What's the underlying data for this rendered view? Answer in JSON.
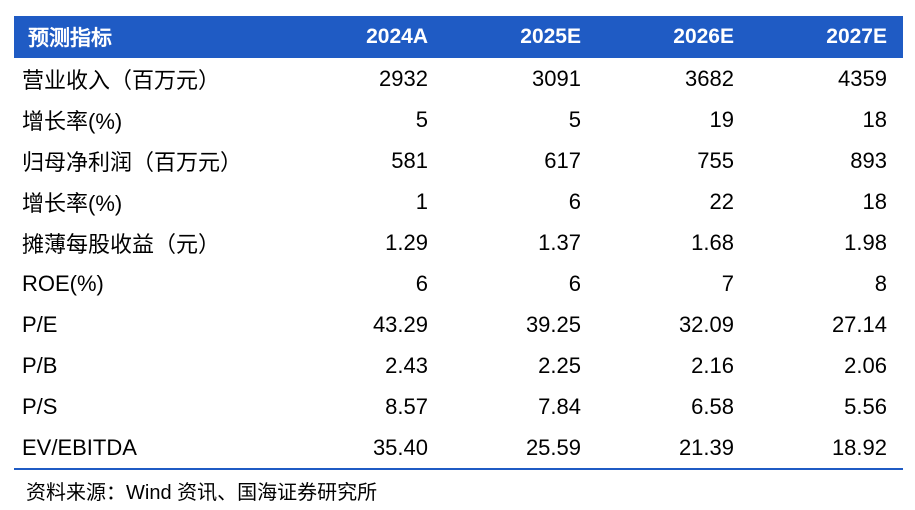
{
  "header": [
    "预测指标",
    "2024A",
    "2025E",
    "2026E",
    "2027E"
  ],
  "rows": [
    {
      "label": "营业收入（百万元）",
      "values": [
        "2932",
        "3091",
        "3682",
        "4359"
      ]
    },
    {
      "label": "增长率(%)",
      "values": [
        "5",
        "5",
        "19",
        "18"
      ]
    },
    {
      "label": "归母净利润（百万元）",
      "values": [
        "581",
        "617",
        "755",
        "893"
      ]
    },
    {
      "label": "增长率(%)",
      "values": [
        "1",
        "6",
        "22",
        "18"
      ]
    },
    {
      "label": "摊薄每股收益（元）",
      "values": [
        "1.29",
        "1.37",
        "1.68",
        "1.98"
      ]
    },
    {
      "label": "ROE(%)",
      "values": [
        "6",
        "6",
        "7",
        "8"
      ]
    },
    {
      "label": "P/E",
      "values": [
        "43.29",
        "39.25",
        "32.09",
        "27.14"
      ]
    },
    {
      "label": "P/B",
      "values": [
        "2.43",
        "2.25",
        "2.16",
        "2.06"
      ]
    },
    {
      "label": "P/S",
      "values": [
        "8.57",
        "7.84",
        "6.58",
        "5.56"
      ]
    },
    {
      "label": "EV/EBITDA",
      "values": [
        "35.40",
        "25.59",
        "21.39",
        "18.92"
      ]
    }
  ],
  "source": "资料来源：Wind 资讯、国海证券研究所",
  "colors": {
    "header_bg": "#1f5bc4",
    "header_text": "#ffffff"
  }
}
